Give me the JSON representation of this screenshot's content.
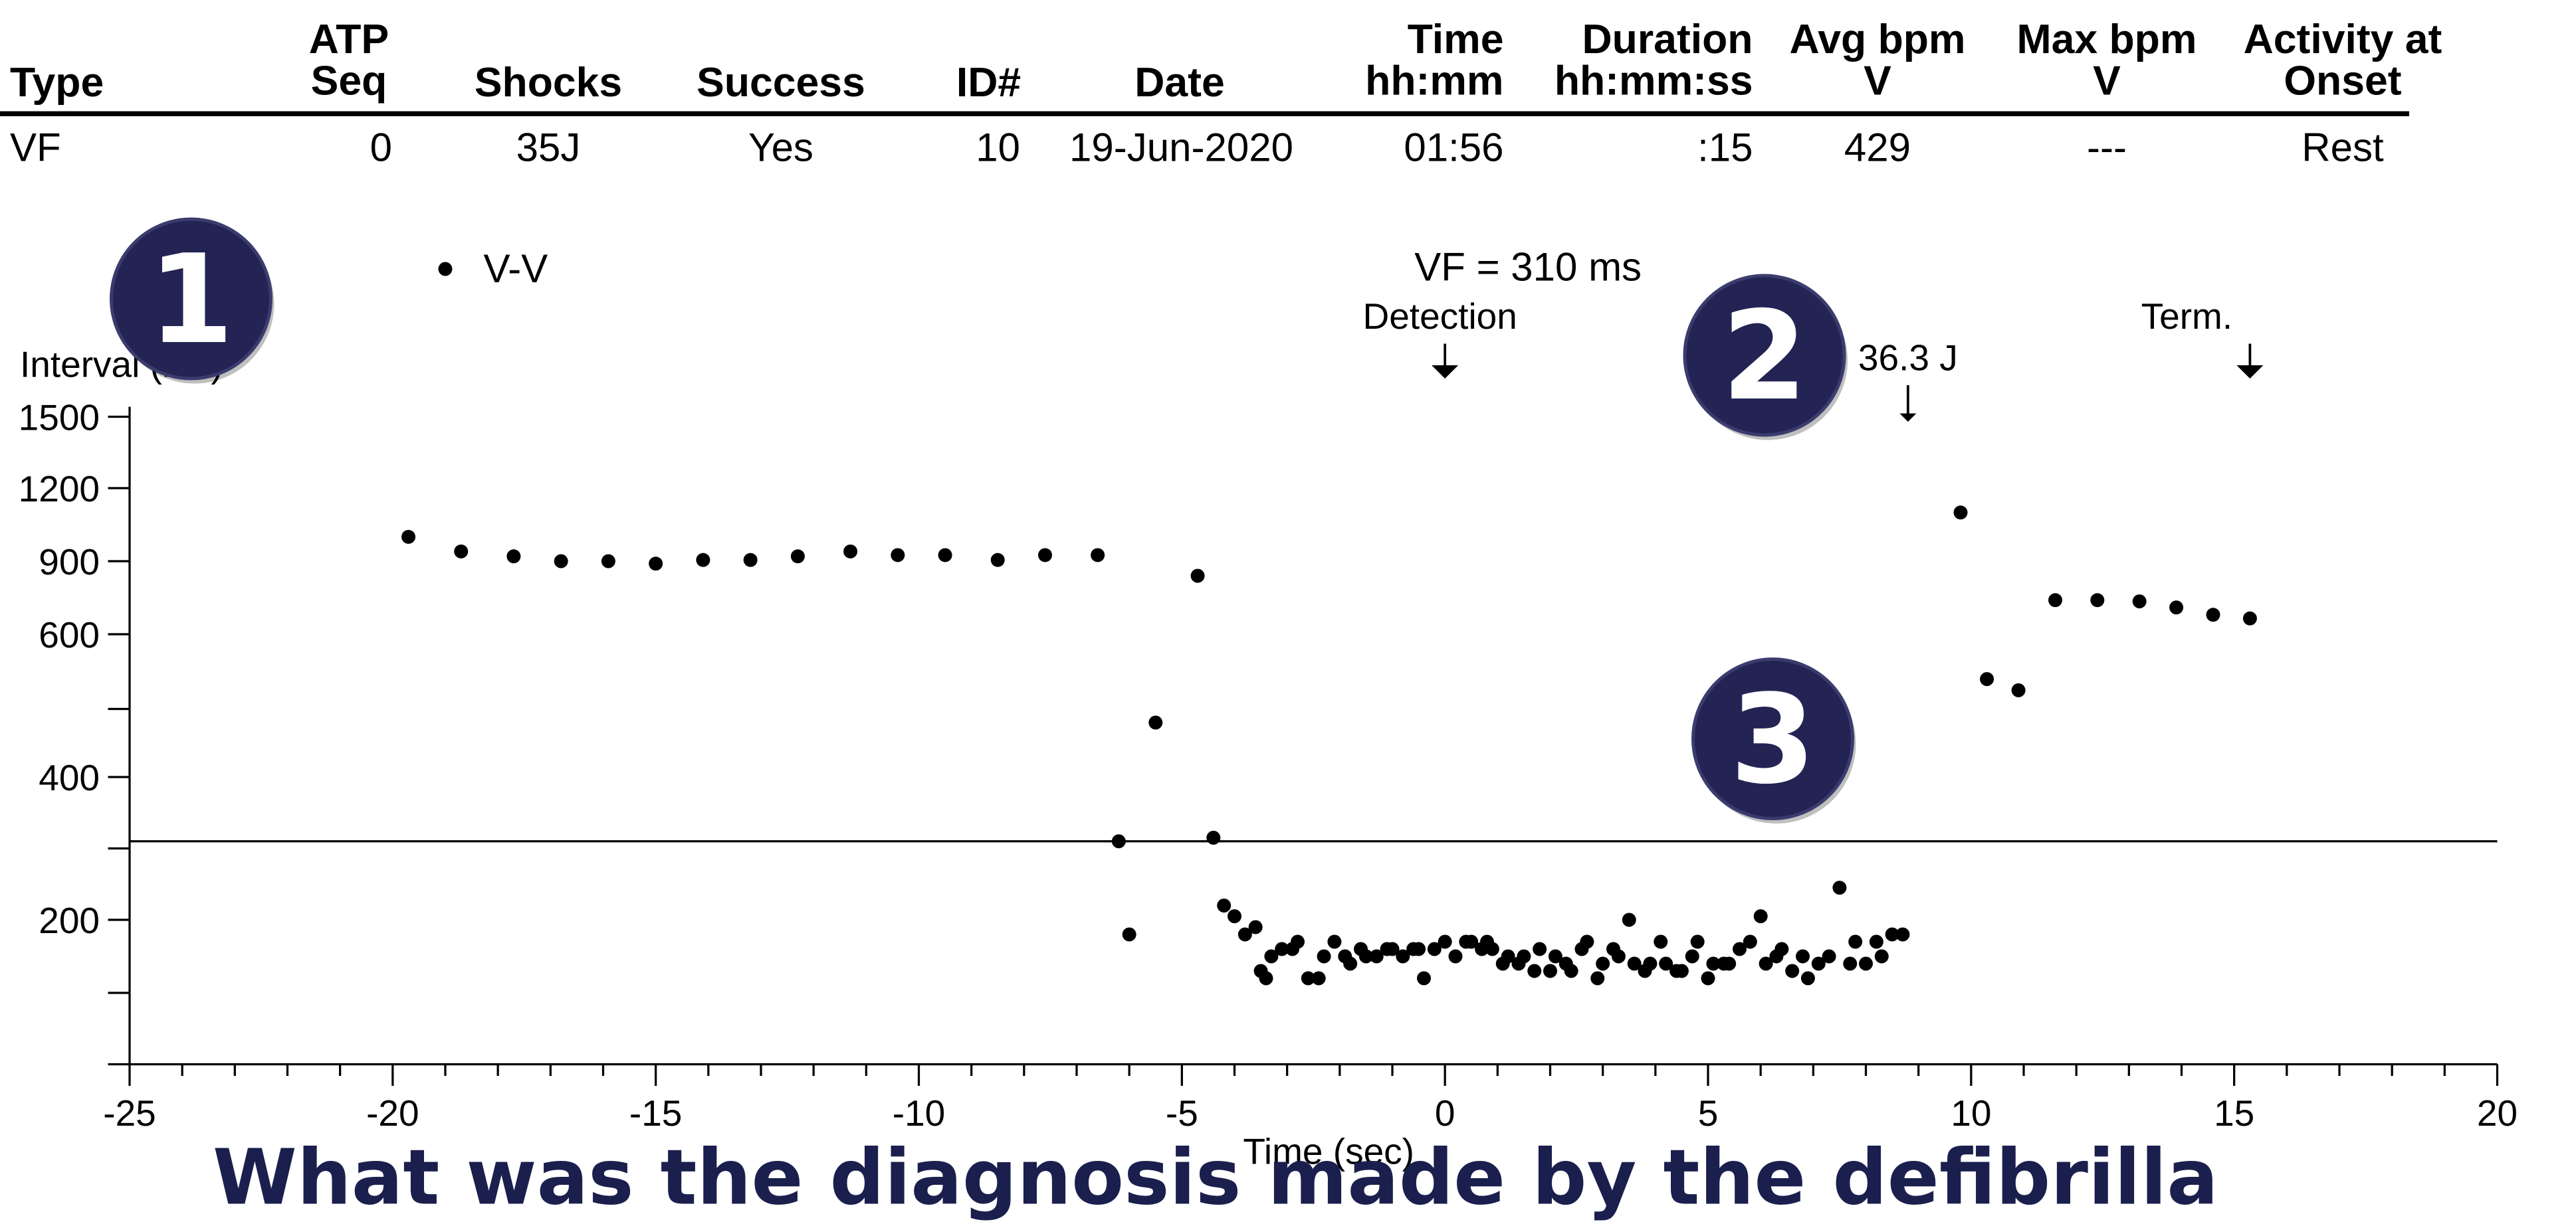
{
  "table": {
    "headers": [
      {
        "line1": "",
        "line2": "Type"
      },
      {
        "line1": "ATP",
        "line2": "Seq"
      },
      {
        "line1": "",
        "line2": "Shocks"
      },
      {
        "line1": "",
        "line2": "Success"
      },
      {
        "line1": "",
        "line2": "ID#"
      },
      {
        "line1": "",
        "line2": "Date"
      },
      {
        "line1": "Time",
        "line2": "hh:mm"
      },
      {
        "line1": "Duration",
        "line2": "hh:mm:ss"
      },
      {
        "line1": "Avg bpm",
        "line2": "V"
      },
      {
        "line1": "Max bpm",
        "line2": "V"
      },
      {
        "line1": "Activity at",
        "line2": "Onset"
      }
    ],
    "row": [
      "VF",
      "0",
      "35J",
      "Yes",
      "10",
      "19-Jun-2020",
      "01:56",
      ":15",
      "429",
      "---",
      "Rest"
    ]
  },
  "chart_data": {
    "type": "scatter",
    "series": [
      {
        "name": "V-V",
        "points": [
          [
            -19.7,
            1000
          ],
          [
            -18.7,
            940
          ],
          [
            -17.7,
            920
          ],
          [
            -16.8,
            900
          ],
          [
            -15.9,
            900
          ],
          [
            -15.0,
            890
          ],
          [
            -14.1,
            905
          ],
          [
            -13.2,
            905
          ],
          [
            -12.3,
            920
          ],
          [
            -11.3,
            940
          ],
          [
            -10.4,
            925
          ],
          [
            -9.5,
            925
          ],
          [
            -8.5,
            905
          ],
          [
            -7.6,
            925
          ],
          [
            -6.6,
            925
          ],
          [
            -4.7,
            840
          ],
          [
            -6.2,
            310
          ],
          [
            -6.0,
            190
          ],
          [
            -5.5,
            480
          ],
          [
            -4.4,
            315
          ],
          [
            -4.2,
            220
          ],
          [
            -4.0,
            205
          ],
          [
            -3.8,
            190
          ],
          [
            -3.6,
            195
          ],
          [
            -3.5,
            165
          ],
          [
            -3.4,
            160
          ],
          [
            -3.3,
            175
          ],
          [
            -3.1,
            180
          ],
          [
            -2.9,
            180
          ],
          [
            -2.8,
            185
          ],
          [
            -2.6,
            160
          ],
          [
            -2.4,
            160
          ],
          [
            -2.3,
            175
          ],
          [
            -2.1,
            185
          ],
          [
            -1.9,
            175
          ],
          [
            -1.8,
            170
          ],
          [
            -1.6,
            180
          ],
          [
            -1.5,
            175
          ],
          [
            -1.3,
            175
          ],
          [
            -1.1,
            180
          ],
          [
            -1.0,
            180
          ],
          [
            -0.8,
            175
          ],
          [
            -0.6,
            180
          ],
          [
            -0.5,
            180
          ],
          [
            -0.4,
            160
          ],
          [
            -0.2,
            180
          ],
          [
            0.0,
            185
          ],
          [
            0.2,
            175
          ],
          [
            0.4,
            185
          ],
          [
            0.5,
            185
          ],
          [
            0.7,
            180
          ],
          [
            0.8,
            185
          ],
          [
            0.9,
            180
          ],
          [
            1.1,
            170
          ],
          [
            1.2,
            175
          ],
          [
            1.4,
            170
          ],
          [
            1.5,
            175
          ],
          [
            1.7,
            165
          ],
          [
            1.8,
            180
          ],
          [
            2.0,
            165
          ],
          [
            2.1,
            175
          ],
          [
            2.3,
            170
          ],
          [
            2.4,
            165
          ],
          [
            2.6,
            180
          ],
          [
            2.7,
            185
          ],
          [
            2.9,
            160
          ],
          [
            3.0,
            170
          ],
          [
            3.2,
            180
          ],
          [
            3.3,
            175
          ],
          [
            3.5,
            200
          ],
          [
            3.6,
            170
          ],
          [
            3.8,
            165
          ],
          [
            3.9,
            170
          ],
          [
            4.1,
            185
          ],
          [
            4.2,
            170
          ],
          [
            4.4,
            165
          ],
          [
            4.5,
            165
          ],
          [
            4.7,
            175
          ],
          [
            4.8,
            185
          ],
          [
            5.0,
            160
          ],
          [
            5.1,
            170
          ],
          [
            5.3,
            170
          ],
          [
            5.4,
            170
          ],
          [
            5.6,
            180
          ],
          [
            5.8,
            185
          ],
          [
            6.0,
            205
          ],
          [
            6.1,
            170
          ],
          [
            6.3,
            175
          ],
          [
            6.4,
            180
          ],
          [
            6.6,
            165
          ],
          [
            6.8,
            175
          ],
          [
            6.9,
            160
          ],
          [
            7.1,
            170
          ],
          [
            7.3,
            175
          ],
          [
            7.5,
            245
          ],
          [
            7.7,
            170
          ],
          [
            7.8,
            185
          ],
          [
            8.0,
            170
          ],
          [
            8.2,
            185
          ],
          [
            8.3,
            175
          ],
          [
            8.5,
            190
          ],
          [
            8.7,
            190
          ],
          [
            9.8,
            1100
          ],
          [
            10.3,
            540
          ],
          [
            10.9,
            525
          ],
          [
            11.6,
            740
          ],
          [
            12.4,
            740
          ],
          [
            13.2,
            735
          ],
          [
            13.9,
            710
          ],
          [
            14.6,
            680
          ],
          [
            15.3,
            665
          ]
        ]
      }
    ],
    "ylabel": "Interval (ms)",
    "xlabel": "Time (sec)",
    "x_ticks": [
      "-25",
      "-20",
      "-15",
      "-10",
      "-5",
      "0",
      "5",
      "10",
      "15",
      "20"
    ],
    "xlim": [
      -25,
      20
    ],
    "y_ticks": [
      {
        "value": 1500,
        "label": "1500"
      },
      {
        "value": 1200,
        "label": "1200"
      },
      {
        "value": 900,
        "label": "900"
      },
      {
        "value": 600,
        "label": "600"
      },
      {
        "value": 500,
        "label": ""
      },
      {
        "value": 400,
        "label": "400"
      },
      {
        "value": 300,
        "label": ""
      },
      {
        "value": 200,
        "label": "200"
      },
      {
        "value": 150,
        "label": ""
      },
      {
        "value": 100,
        "label": ""
      }
    ],
    "vf_threshold": {
      "value": 310,
      "label": "VF = 310 ms"
    },
    "markers": [
      {
        "label": "Detection",
        "x": 0.0
      },
      {
        "label": "36.3 J",
        "x": 8.8
      },
      {
        "label": "Term.",
        "x": 15.3
      }
    ],
    "legend": {
      "label": "V-V",
      "placement": "top-left"
    },
    "grid": false
  },
  "badges": [
    "1",
    "2",
    "3"
  ],
  "question": "What was the diagnosis made by the defibrilla",
  "colors": {
    "badge_fill": "#232454",
    "badge_text": "#ffffff",
    "question": "#1b1f4d"
  }
}
